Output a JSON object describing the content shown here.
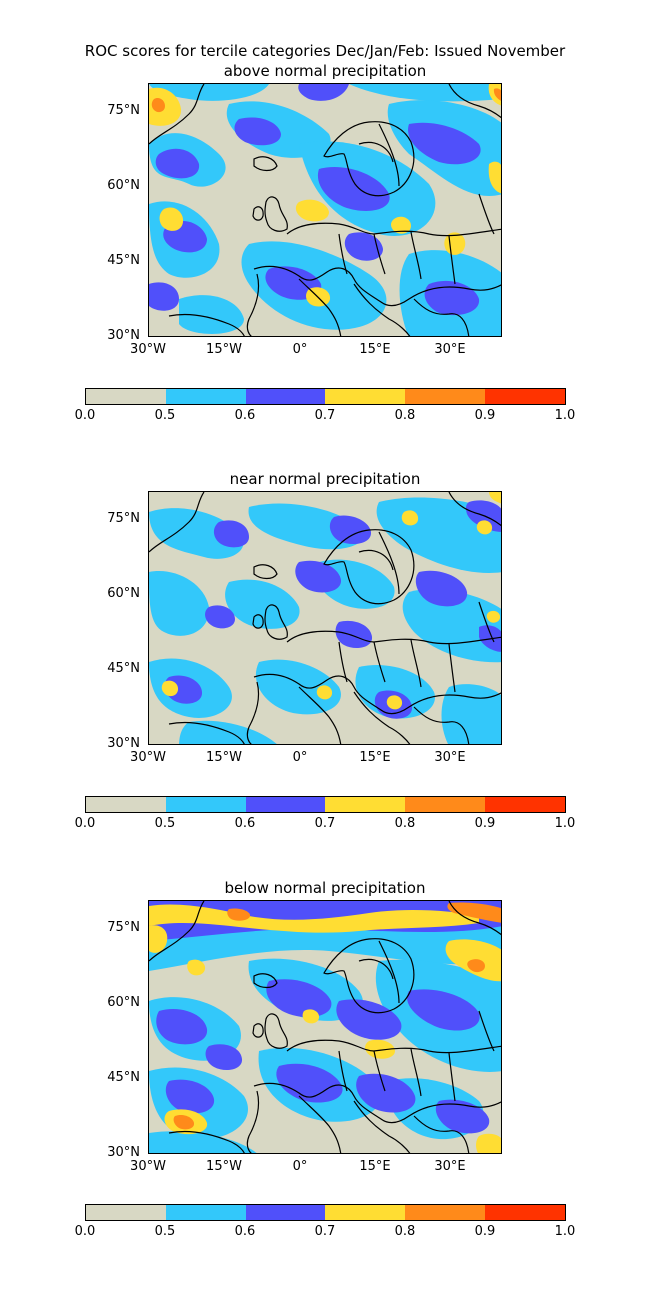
{
  "title": "ROC scores for tercile categories Dec/Jan/Feb: Issued November",
  "panels": [
    {
      "subtitle": "above normal precipitation"
    },
    {
      "subtitle": "near normal precipitation"
    },
    {
      "subtitle": "below normal precipitation"
    }
  ],
  "map": {
    "lat_ticks": [
      "75°N",
      "60°N",
      "45°N",
      "30°N"
    ],
    "lon_ticks": [
      "30°W",
      "15°W",
      "0°",
      "15°E",
      "30°E"
    ],
    "lat_range": [
      30,
      80
    ],
    "lon_range": [
      -30,
      40
    ]
  },
  "colorbar": {
    "labels": [
      "0.0",
      "0.5",
      "0.6",
      "0.7",
      "0.8",
      "0.9",
      "1.0"
    ],
    "colors": [
      "#d8d8c4",
      "#33c8fa",
      "#5050fa",
      "#ffdd33",
      "#ff8a1a",
      "#ff3300"
    ]
  }
}
